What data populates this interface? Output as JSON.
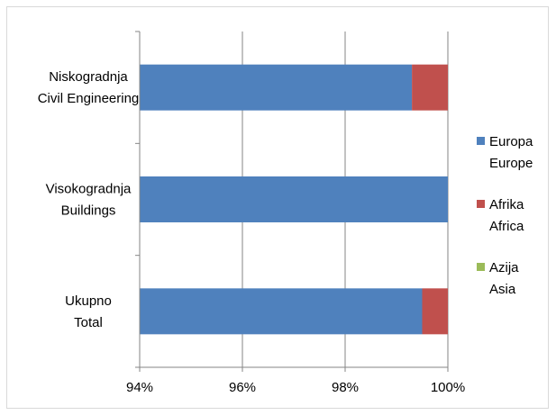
{
  "chart_data": {
    "type": "bar",
    "orientation": "horizontal",
    "stacked": "percent",
    "categories": [
      [
        "Niskogradnja",
        "Civil Engineering"
      ],
      [
        "Visokogradnja",
        "Buildings"
      ],
      [
        "Ukupno",
        "Total"
      ]
    ],
    "series": [
      {
        "name": [
          "Europa",
          "Europe"
        ],
        "color": "#4F81BD",
        "values": [
          99.3,
          100,
          99.5
        ]
      },
      {
        "name": [
          "Afrika",
          "Africa"
        ],
        "color": "#C0504D",
        "values": [
          0.7,
          0,
          0.5
        ]
      },
      {
        "name": [
          "Azija",
          "Asia"
        ],
        "color": "#9BBB59",
        "values": [
          0,
          0,
          0
        ]
      }
    ],
    "xlim": [
      94,
      100
    ],
    "xticks": [
      94,
      96,
      98,
      100
    ],
    "xtick_labels": [
      "94%",
      "96%",
      "98%",
      "100%"
    ],
    "grid": "vertical",
    "legend": "right"
  }
}
